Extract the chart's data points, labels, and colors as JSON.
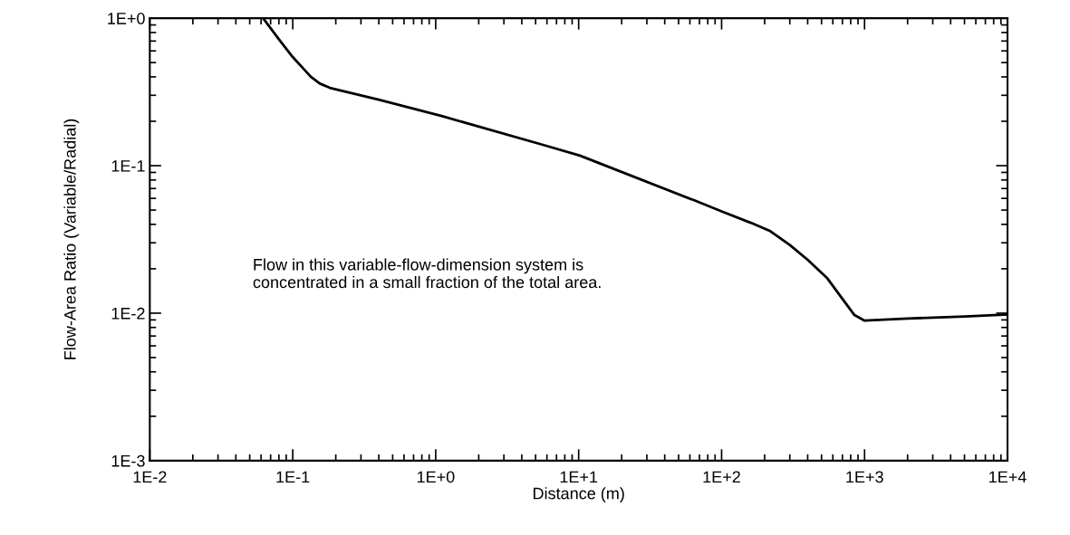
{
  "chart_data": {
    "type": "line",
    "xlabel": "Distance (m)",
    "ylabel": "Flow-Area Ratio (Variable/Radial)",
    "annotations": [
      "Flow in this variable-flow-dimension system is\nconcentrated in a small fraction of the total area."
    ],
    "log": "xy",
    "grid": false,
    "marker": "none",
    "line_style": "solid",
    "xlim": [
      0.01,
      10000
    ],
    "ylim": [
      0.001,
      1
    ],
    "xticks": [
      {
        "value": 0.01,
        "label": "1E-2"
      },
      {
        "value": 0.1,
        "label": "1E-1"
      },
      {
        "value": 1,
        "label": "1E+0"
      },
      {
        "value": 10,
        "label": "1E+1"
      },
      {
        "value": 100,
        "label": "1E+2"
      },
      {
        "value": 1000,
        "label": "1E+3"
      },
      {
        "value": 10000,
        "label": "1E+4"
      }
    ],
    "yticks": [
      {
        "value": 0.001,
        "label": "1E-3"
      },
      {
        "value": 0.01,
        "label": "1E-2"
      },
      {
        "value": 0.1,
        "label": "1E-1"
      },
      {
        "value": 1,
        "label": "1E+0"
      }
    ],
    "series": [
      {
        "color": "#000000",
        "x": [
          0.062,
          0.08,
          0.1,
          0.12,
          0.134,
          0.155,
          0.182,
          0.4,
          1.1,
          5.7,
          10.2,
          65,
          100,
          160,
          219,
          300,
          400,
          550,
          700,
          850,
          1000,
          2000,
          5000,
          10000
        ],
        "values": [
          1,
          0.72,
          0.545,
          0.45,
          0.4,
          0.36,
          0.337,
          0.28,
          0.217,
          0.138,
          0.117,
          0.058,
          0.049,
          0.041,
          0.036,
          0.029,
          0.023,
          0.0172,
          0.0125,
          0.0097,
          0.0089,
          0.0092,
          0.0095,
          0.0098
        ]
      }
    ]
  }
}
